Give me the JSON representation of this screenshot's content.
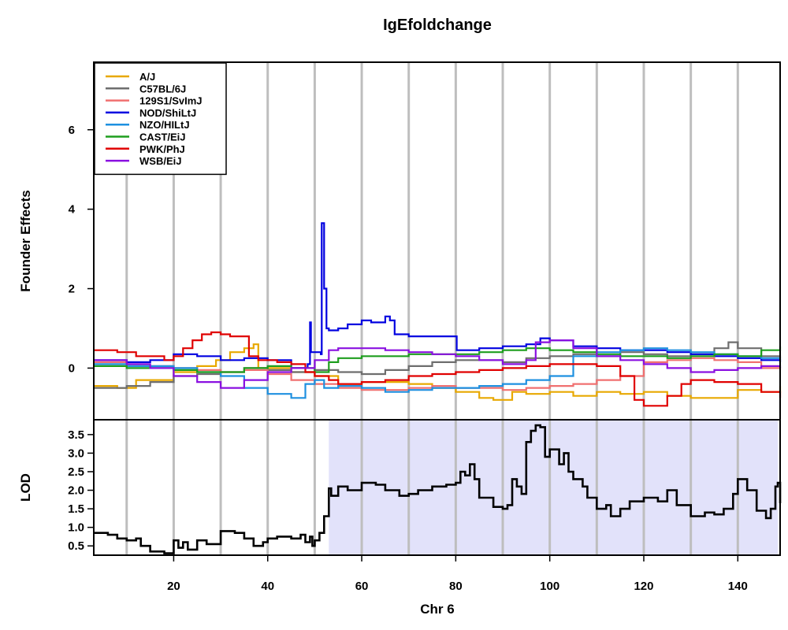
{
  "chart_data": [
    {
      "type": "line",
      "title": "IgEfoldchange",
      "ylabel": "Founder Effects",
      "xlim": [
        3,
        149
      ],
      "ylim": [
        -1.3,
        7.7
      ],
      "yticks": [
        0,
        2,
        4,
        6
      ],
      "vgrid": [
        10,
        20,
        30,
        40,
        50,
        60,
        70,
        80,
        90,
        100,
        110,
        120,
        130,
        140
      ],
      "legend_position": "top-left",
      "series": [
        {
          "name": "A/J",
          "color": "#E8A800",
          "x": [
            3,
            8,
            12,
            20,
            25,
            29,
            32,
            35,
            37,
            38,
            45,
            50,
            55,
            60,
            65,
            70,
            75,
            80,
            85,
            88,
            92,
            95,
            100,
            105,
            110,
            115,
            120,
            125,
            130,
            135,
            140,
            145,
            149
          ],
          "y": [
            -0.45,
            -0.5,
            -0.3,
            -0.1,
            0.05,
            0.2,
            0.4,
            0.5,
            0.6,
            0.0,
            -0.1,
            -0.2,
            -0.4,
            -0.35,
            -0.35,
            -0.4,
            -0.5,
            -0.6,
            -0.75,
            -0.8,
            -0.6,
            -0.65,
            -0.6,
            -0.7,
            -0.6,
            -0.65,
            -0.6,
            -0.7,
            -0.75,
            -0.75,
            -0.55,
            -0.6,
            -0.45
          ]
        },
        {
          "name": "C57BL/6J",
          "color": "#6E6E6E",
          "x": [
            3,
            10,
            15,
            20,
            25,
            30,
            35,
            40,
            45,
            50,
            55,
            60,
            65,
            70,
            75,
            80,
            85,
            90,
            95,
            100,
            105,
            110,
            115,
            120,
            125,
            130,
            135,
            138,
            140,
            145,
            149
          ],
          "y": [
            -0.5,
            -0.45,
            -0.35,
            -0.2,
            -0.15,
            -0.1,
            0.0,
            -0.05,
            -0.1,
            -0.05,
            -0.1,
            -0.15,
            -0.05,
            0.05,
            0.15,
            0.2,
            0.2,
            0.15,
            0.25,
            0.3,
            0.35,
            0.3,
            0.4,
            0.35,
            0.3,
            0.35,
            0.5,
            0.65,
            0.5,
            0.3,
            0.25
          ]
        },
        {
          "name": "129S1/SvImJ",
          "color": "#F07070",
          "x": [
            3,
            10,
            20,
            25,
            30,
            35,
            40,
            45,
            50,
            55,
            60,
            65,
            70,
            75,
            80,
            85,
            90,
            95,
            100,
            105,
            110,
            115,
            120,
            125,
            130,
            135,
            140,
            145,
            149
          ],
          "y": [
            0.15,
            0.05,
            0.0,
            -0.05,
            -0.1,
            -0.05,
            -0.15,
            -0.3,
            -0.4,
            -0.5,
            -0.55,
            -0.55,
            -0.5,
            -0.45,
            -0.5,
            -0.5,
            -0.55,
            -0.5,
            -0.45,
            -0.4,
            -0.3,
            -0.2,
            0.15,
            0.2,
            0.25,
            0.2,
            0.15,
            0.0,
            -0.05
          ]
        },
        {
          "name": "NOD/ShiLtJ",
          "color": "#0000E0",
          "x": [
            3,
            10,
            15,
            20,
            25,
            30,
            35,
            40,
            45,
            48.5,
            49,
            49.2,
            51.3,
            51.5,
            52,
            52.5,
            53,
            55,
            57,
            60,
            62,
            65,
            66,
            67,
            70,
            75,
            80,
            80.2,
            85,
            90,
            95,
            98,
            100,
            105,
            110,
            115,
            120,
            125,
            130,
            135,
            140,
            145,
            149
          ],
          "y": [
            0.2,
            0.15,
            0.2,
            0.35,
            0.3,
            0.2,
            0.25,
            0.2,
            0.0,
            0.1,
            1.15,
            0.4,
            0.35,
            3.65,
            2.0,
            1.0,
            0.95,
            1.0,
            1.1,
            1.2,
            1.15,
            1.3,
            1.2,
            0.85,
            0.8,
            0.8,
            0.8,
            0.45,
            0.5,
            0.55,
            0.6,
            0.75,
            0.7,
            0.55,
            0.5,
            0.45,
            0.45,
            0.4,
            0.35,
            0.3,
            0.25,
            0.2,
            0.15
          ]
        },
        {
          "name": "NZO/HILtJ",
          "color": "#1E90E0",
          "x": [
            3,
            10,
            20,
            25,
            30,
            35,
            40,
            45,
            48,
            50,
            52,
            55,
            60,
            65,
            70,
            75,
            80,
            85,
            90,
            95,
            100,
            105,
            110,
            115,
            120,
            125,
            130,
            135,
            140,
            145,
            149
          ],
          "y": [
            0.1,
            0.05,
            0.0,
            -0.1,
            -0.2,
            -0.5,
            -0.65,
            -0.75,
            -0.4,
            -0.3,
            -0.5,
            -0.45,
            -0.5,
            -0.6,
            -0.55,
            -0.5,
            -0.5,
            -0.45,
            -0.4,
            -0.3,
            -0.2,
            0.3,
            0.4,
            0.45,
            0.5,
            0.45,
            0.4,
            0.35,
            0.3,
            0.25,
            0.2
          ]
        },
        {
          "name": "CAST/EiJ",
          "color": "#1E9E1E",
          "x": [
            3,
            10,
            20,
            25,
            30,
            35,
            40,
            45,
            50,
            53,
            55,
            60,
            65,
            70,
            75,
            80,
            85,
            90,
            95,
            100,
            105,
            110,
            115,
            120,
            125,
            130,
            135,
            140,
            145,
            149
          ],
          "y": [
            0.05,
            0.0,
            -0.05,
            -0.1,
            -0.1,
            0.0,
            0.05,
            0.0,
            -0.1,
            0.15,
            0.25,
            0.3,
            0.3,
            0.35,
            0.35,
            0.35,
            0.4,
            0.45,
            0.5,
            0.45,
            0.4,
            0.35,
            0.3,
            0.3,
            0.25,
            0.3,
            0.35,
            0.3,
            0.45,
            0.55
          ]
        },
        {
          "name": "PWK/PhJ",
          "color": "#E00000",
          "x": [
            3,
            8,
            12,
            18,
            20,
            22,
            24,
            26,
            28,
            30,
            32,
            34,
            36,
            38,
            42,
            45,
            48,
            50,
            53,
            55,
            60,
            65,
            70,
            75,
            80,
            85,
            90,
            95,
            100,
            105,
            110,
            115,
            118,
            120,
            125,
            128,
            130,
            135,
            140,
            145,
            149
          ],
          "y": [
            0.45,
            0.4,
            0.3,
            0.2,
            0.3,
            0.5,
            0.7,
            0.85,
            0.9,
            0.85,
            0.8,
            0.8,
            0.3,
            0.2,
            0.15,
            0.1,
            -0.1,
            -0.2,
            -0.3,
            -0.4,
            -0.35,
            -0.3,
            -0.2,
            -0.15,
            -0.1,
            -0.05,
            0.0,
            0.05,
            0.1,
            0.1,
            0.05,
            -0.2,
            -0.8,
            -0.95,
            -0.7,
            -0.4,
            -0.3,
            -0.35,
            -0.4,
            -0.6,
            -0.75
          ]
        },
        {
          "name": "WSB/EiJ",
          "color": "#8A10E0",
          "x": [
            3,
            10,
            15,
            20,
            25,
            30,
            35,
            40,
            45,
            50,
            53,
            55,
            60,
            65,
            70,
            75,
            80,
            85,
            90,
            95,
            97,
            100,
            105,
            110,
            115,
            120,
            125,
            130,
            135,
            140,
            145,
            149
          ],
          "y": [
            0.2,
            0.1,
            0.0,
            -0.2,
            -0.35,
            -0.5,
            -0.3,
            -0.1,
            0.0,
            0.2,
            0.45,
            0.5,
            0.5,
            0.45,
            0.4,
            0.35,
            0.3,
            0.2,
            0.1,
            0.2,
            0.65,
            0.7,
            0.5,
            0.3,
            0.2,
            0.1,
            0.0,
            -0.1,
            -0.05,
            0.0,
            0.05,
            0.0
          ]
        }
      ]
    },
    {
      "type": "line",
      "xlabel": "Chr 6",
      "ylabel": "LOD",
      "xlim": [
        3,
        149
      ],
      "ylim": [
        0.25,
        3.9
      ],
      "yticks": [
        0.5,
        1.0,
        1.5,
        2.0,
        2.5,
        3.0,
        3.5
      ],
      "xticks": [
        20,
        40,
        60,
        80,
        100,
        120,
        140
      ],
      "vgrid": [
        10,
        20,
        30,
        40,
        50,
        60,
        70,
        80,
        90,
        100,
        110,
        120,
        130,
        140
      ],
      "highlight_interval": [
        53,
        148.5
      ],
      "highlight_color": "#E2E2FA",
      "series": [
        {
          "name": "",
          "color": "#000000",
          "x": [
            3,
            6,
            8,
            10,
            12,
            13,
            15,
            18,
            20,
            21,
            22,
            23,
            25,
            27,
            30,
            33,
            35,
            37,
            39,
            40,
            42,
            45,
            47,
            48,
            49,
            49.5,
            50,
            51,
            52,
            53,
            53.5,
            55,
            57,
            60,
            63,
            65,
            68,
            70,
            72,
            75,
            78,
            80,
            81,
            82,
            83,
            84,
            85,
            88,
            90,
            91,
            92,
            93,
            94,
            95,
            96,
            97,
            98,
            99,
            100,
            102,
            103,
            104,
            105,
            107,
            108,
            110,
            112,
            113,
            115,
            117,
            120,
            123,
            125,
            127,
            130,
            133,
            135,
            137,
            139,
            140,
            142,
            144,
            146,
            147,
            148,
            148.5,
            149
          ],
          "y": [
            0.85,
            0.8,
            0.7,
            0.65,
            0.7,
            0.5,
            0.35,
            0.3,
            0.65,
            0.45,
            0.6,
            0.4,
            0.65,
            0.55,
            0.9,
            0.85,
            0.7,
            0.5,
            0.6,
            0.7,
            0.75,
            0.7,
            0.8,
            0.6,
            0.75,
            0.5,
            0.65,
            0.85,
            1.3,
            2.05,
            1.85,
            2.1,
            2.0,
            2.2,
            2.15,
            2.0,
            1.85,
            1.9,
            2.0,
            2.1,
            2.15,
            2.2,
            2.5,
            2.4,
            2.7,
            2.3,
            1.8,
            1.55,
            1.5,
            1.6,
            2.3,
            2.1,
            1.9,
            3.3,
            3.6,
            3.75,
            3.7,
            2.9,
            3.1,
            2.7,
            3.0,
            2.5,
            2.3,
            2.1,
            1.8,
            1.5,
            1.6,
            1.3,
            1.5,
            1.7,
            1.8,
            1.7,
            2.0,
            1.6,
            1.3,
            1.4,
            1.35,
            1.5,
            1.9,
            2.3,
            2.0,
            1.45,
            1.25,
            1.5,
            2.1,
            2.2,
            1.65
          ]
        }
      ]
    }
  ]
}
